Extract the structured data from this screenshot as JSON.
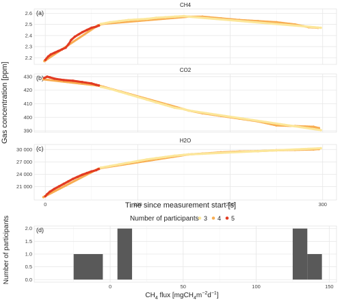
{
  "chart_data": [
    {
      "panel": "(a)",
      "type": "scatter",
      "title": "CH4",
      "ylim": [
        2.14,
        2.64
      ],
      "y_ticks": [
        2.2,
        2.3,
        2.4,
        2.5,
        2.6
      ],
      "y_tick_labels": [
        "2.2",
        "2.3",
        "2.4",
        "2.5",
        "2.6"
      ],
      "series": [
        {
          "name": "5",
          "color": "#e23b22",
          "points": [
            [
              0,
              2.18
            ],
            [
              3,
              2.21
            ],
            [
              6,
              2.23
            ],
            [
              10,
              2.245
            ],
            [
              14,
              2.26
            ],
            [
              18,
              2.275
            ],
            [
              22,
              2.29
            ],
            [
              25,
              2.32
            ],
            [
              28,
              2.36
            ],
            [
              32,
              2.39
            ],
            [
              36,
              2.41
            ],
            [
              40,
              2.43
            ],
            [
              45,
              2.45
            ],
            [
              50,
              2.47
            ],
            [
              55,
              2.48
            ],
            [
              58,
              2.49
            ]
          ]
        },
        {
          "name": "4",
          "color": "#f8ad52",
          "points": [
            [
              -1,
              2.17
            ],
            [
              0,
              2.175
            ],
            [
              57,
              2.492
            ],
            [
              60,
              2.5
            ],
            [
              62,
              2.505
            ],
            [
              155,
              2.57
            ],
            [
              170,
              2.57
            ],
            [
              190,
              2.555
            ],
            [
              210,
              2.54
            ],
            [
              230,
              2.53
            ],
            [
              250,
              2.52
            ],
            [
              270,
              2.5
            ],
            [
              285,
              2.475
            ],
            [
              295,
              2.47
            ]
          ]
        },
        {
          "name": "3",
          "color": "#fce79b",
          "points": [
            [
              60,
              2.505
            ],
            [
              70,
              2.52
            ],
            [
              80,
              2.53
            ],
            [
              90,
              2.54
            ],
            [
              100,
              2.545
            ],
            [
              110,
              2.55
            ],
            [
              120,
              2.56
            ],
            [
              130,
              2.565
            ],
            [
              140,
              2.57
            ],
            [
              150,
              2.575
            ],
            [
              155,
              2.57
            ],
            [
              298,
              2.47
            ]
          ]
        }
      ]
    },
    {
      "panel": "(b)",
      "type": "scatter",
      "title": "CO2",
      "ylim": [
        389,
        432
      ],
      "y_ticks": [
        390,
        400,
        410,
        420,
        430
      ],
      "y_tick_labels": [
        "390",
        "400",
        "410",
        "420",
        "430"
      ],
      "series": [
        {
          "name": "5",
          "color": "#e23b22",
          "points": [
            [
              -1,
              429
            ],
            [
              2,
              430
            ],
            [
              5,
              429.5
            ],
            [
              10,
              428.5
            ],
            [
              20,
              427.5
            ],
            [
              30,
              427
            ],
            [
              40,
              426
            ],
            [
              50,
              425
            ],
            [
              55,
              424
            ],
            [
              58,
              423.5
            ]
          ]
        },
        {
          "name": "4",
          "color": "#f8ad52",
          "points": [
            [
              -2,
              428
            ],
            [
              56,
              423.5
            ],
            [
              60,
              423
            ],
            [
              63,
              422.5
            ],
            [
              155,
              405
            ],
            [
              170,
              403
            ],
            [
              190,
              401
            ],
            [
              210,
              399
            ],
            [
              230,
              397
            ],
            [
              250,
              394
            ],
            [
              270,
              393.5
            ],
            [
              290,
              393
            ],
            [
              296,
              392
            ]
          ]
        },
        {
          "name": "3",
          "color": "#fce79b",
          "points": [
            [
              60,
              422.5
            ],
            [
              70,
              421
            ],
            [
              80,
              419
            ],
            [
              90,
              417
            ],
            [
              100,
              415
            ],
            [
              110,
              413
            ],
            [
              120,
              411
            ],
            [
              130,
              409
            ],
            [
              140,
              407
            ],
            [
              150,
              406
            ],
            [
              155,
              405
            ],
            [
              298,
              390.5
            ]
          ]
        }
      ]
    },
    {
      "panel": "(c)",
      "type": "scatter",
      "title": "H2O",
      "xlabel": "Time since measurement start [s]",
      "ylim": [
        17800,
        31200
      ],
      "y_ticks": [
        21000,
        24000,
        27000,
        30000
      ],
      "y_tick_labels": [
        "21 000",
        "24 000",
        "27 000",
        "30 000"
      ],
      "x_ticks": [
        0,
        100,
        200,
        300
      ],
      "x_tick_labels": [
        "0",
        "100",
        "200",
        "300"
      ],
      "xlim": [
        -12,
        315
      ],
      "series": [
        {
          "name": "5",
          "color": "#e23b22",
          "points": [
            [
              0,
              18700
            ],
            [
              2,
              19200
            ],
            [
              5,
              19800
            ],
            [
              10,
              20500
            ],
            [
              15,
              21100
            ],
            [
              20,
              21700
            ],
            [
              25,
              22300
            ],
            [
              30,
              22900
            ],
            [
              35,
              23400
            ],
            [
              40,
              23900
            ],
            [
              45,
              24300
            ],
            [
              50,
              24700
            ],
            [
              55,
              25000
            ],
            [
              58,
              25300
            ]
          ]
        },
        {
          "name": "4",
          "color": "#f8ad52",
          "points": [
            [
              -2,
              18500
            ],
            [
              57,
              25300
            ],
            [
              60,
              25500
            ],
            [
              155,
              28800
            ],
            [
              170,
              29000
            ],
            [
              190,
              29300
            ],
            [
              210,
              29500
            ],
            [
              230,
              29600
            ],
            [
              250,
              29800
            ],
            [
              270,
              29900
            ],
            [
              290,
              30000
            ],
            [
              296,
              30100
            ]
          ]
        },
        {
          "name": "3",
          "color": "#fce79b",
          "points": [
            [
              60,
              25600
            ],
            [
              70,
              26000
            ],
            [
              80,
              26400
            ],
            [
              90,
              26800
            ],
            [
              100,
              27200
            ],
            [
              110,
              27600
            ],
            [
              120,
              27900
            ],
            [
              130,
              28200
            ],
            [
              140,
              28500
            ],
            [
              150,
              28700
            ],
            [
              155,
              28800
            ],
            [
              298,
              30300
            ]
          ]
        }
      ]
    },
    {
      "panel": "(d)",
      "type": "bar",
      "xlabel_main": "CH",
      "xlabel_sub4": "4",
      "xlabel_rest": " flux [mgCH",
      "xlabel_sub4b": "4",
      "xlabel_mid": "m",
      "xlabel_sup1": "−2",
      "xlabel_mid2": "d",
      "xlabel_sup2": "−1",
      "xlabel_end": "]",
      "ylabel": "Number of participants",
      "xlim": [
        -52,
        155
      ],
      "ylim": [
        -0.1,
        2.1
      ],
      "x_ticks": [
        0,
        50,
        100,
        150
      ],
      "x_tick_labels": [
        "0",
        "50",
        "100",
        "150"
      ],
      "y_ticks": [
        0.0,
        0.5,
        1.0,
        1.5,
        2.0
      ],
      "y_tick_labels": [
        "0.0",
        "0.5",
        "1.0",
        "1.5",
        "2.0"
      ],
      "bars": [
        {
          "x0": -25,
          "x1": -5,
          "value": 1
        },
        {
          "x0": 5,
          "x1": 15,
          "value": 2
        },
        {
          "x0": 125,
          "x1": 135,
          "value": 2
        },
        {
          "x0": 135,
          "x1": 145,
          "value": 1
        }
      ],
      "bar_color": "#595959"
    }
  ],
  "shared": {
    "ylabel": "Gas concentration [ppm]",
    "legend_title": "Number of participants",
    "legend_entries": [
      {
        "label": "3",
        "color": "#fce79b"
      },
      {
        "label": "4",
        "color": "#f8ad52"
      },
      {
        "label": "5",
        "color": "#e23b22"
      }
    ],
    "grid": true,
    "panel_background": "#ffffff",
    "grid_color": "#ebebeb"
  }
}
